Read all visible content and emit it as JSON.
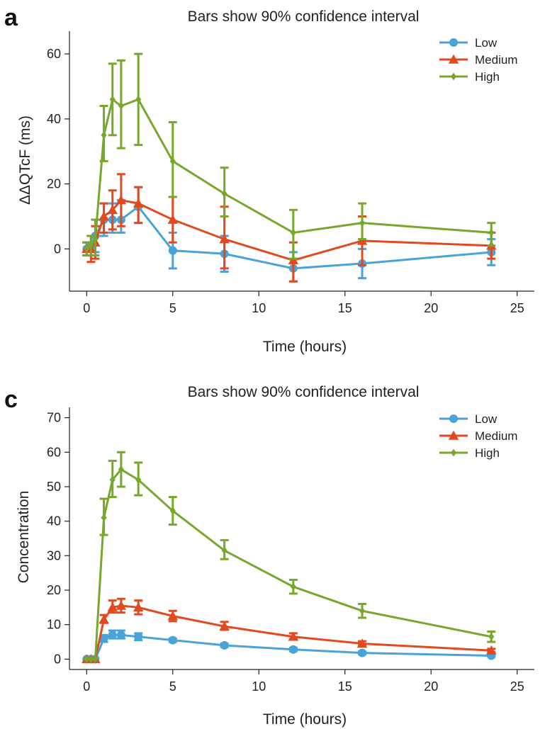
{
  "colors": {
    "Low": "#4aa3d8",
    "Medium": "#e2491e",
    "High": "#77a82d"
  },
  "chart_data": [
    {
      "panel": "a",
      "type": "line",
      "title": "Bars show 90% confidence interval",
      "xlabel": "Time (hours)",
      "ylabel": "ΔΔQTcF (ms)",
      "xlim": [
        -1,
        26
      ],
      "ylim": [
        -13,
        67
      ],
      "xticks": [
        0,
        5,
        10,
        15,
        20,
        25
      ],
      "yticks": [
        0,
        20,
        40,
        60
      ],
      "legend": "top-right",
      "series": [
        {
          "name": "Low",
          "marker": "circle",
          "x": [
            0,
            0.25,
            0.5,
            1,
            1.5,
            2,
            3,
            5,
            8,
            12,
            16,
            23.5
          ],
          "y": [
            0,
            1,
            4,
            9,
            9,
            9,
            13,
            -0.5,
            -1.5,
            -6,
            -4.5,
            -1
          ],
          "low": [
            -2,
            -2,
            -1,
            4,
            5,
            5,
            8,
            -6,
            -7,
            -10,
            -9,
            -5
          ],
          "high": [
            2,
            4,
            9,
            14,
            14,
            15,
            19,
            5,
            4,
            -1,
            0,
            3
          ]
        },
        {
          "name": "Medium",
          "marker": "triangle",
          "x": [
            0,
            0.25,
            0.5,
            1,
            1.5,
            2,
            3,
            5,
            8,
            12,
            16,
            23.5
          ],
          "y": [
            0,
            0,
            2,
            10,
            12,
            15,
            14,
            9,
            3,
            -3.5,
            2.5,
            1
          ],
          "low": [
            -2,
            -4,
            -3,
            5,
            6,
            7,
            8,
            2,
            -6,
            -10,
            -5,
            -3
          ],
          "high": [
            2,
            4,
            7,
            14,
            18,
            23,
            19,
            16,
            13,
            2,
            10,
            5
          ]
        },
        {
          "name": "High",
          "marker": "diamond",
          "x": [
            0,
            0.25,
            0.5,
            1,
            1.5,
            2,
            3,
            5,
            8,
            12,
            16,
            23.5
          ],
          "y": [
            0,
            1,
            3,
            35,
            46,
            44,
            46,
            27,
            17,
            5,
            8,
            5
          ],
          "low": [
            -2,
            -2,
            -2,
            27,
            35,
            31,
            32,
            16,
            10,
            -3,
            3,
            1
          ],
          "high": [
            2,
            4,
            9,
            44,
            57,
            58,
            60,
            39,
            25,
            12,
            14,
            8
          ]
        }
      ]
    },
    {
      "panel": "c",
      "type": "line",
      "title": "Bars show 90% confidence interval",
      "xlabel": "Time (hours)",
      "ylabel": "Concentration",
      "xlim": [
        -1,
        26
      ],
      "ylim": [
        -3,
        73
      ],
      "xticks": [
        0,
        5,
        10,
        15,
        20,
        25
      ],
      "yticks": [
        0,
        10,
        20,
        30,
        40,
        50,
        60,
        70
      ],
      "legend": "top-right",
      "series": [
        {
          "name": "Low",
          "marker": "circle",
          "x": [
            0,
            0.25,
            0.5,
            1,
            1.5,
            2,
            3,
            5,
            8,
            12,
            16,
            23.5
          ],
          "y": [
            0,
            0,
            0,
            6,
            7,
            7,
            6.5,
            5.5,
            4,
            2.8,
            1.8,
            1
          ],
          "low": [
            0,
            0,
            0,
            5,
            6,
            6,
            5.5,
            5,
            3.5,
            2.3,
            1.4,
            0.7
          ],
          "high": [
            0,
            0,
            0,
            7,
            8.3,
            8.3,
            7.5,
            6,
            4.5,
            3.3,
            2.2,
            1.3
          ]
        },
        {
          "name": "Medium",
          "marker": "triangle",
          "x": [
            0,
            0.25,
            0.5,
            1,
            1.5,
            2,
            3,
            5,
            8,
            12,
            16,
            23.5
          ],
          "y": [
            0,
            0,
            0,
            11.5,
            15,
            15.5,
            15,
            12.5,
            9.5,
            6.5,
            4.5,
            2.5
          ],
          "low": [
            0,
            0,
            0,
            10.5,
            13.5,
            13.5,
            13,
            11,
            8.5,
            5.8,
            4,
            2
          ],
          "high": [
            0,
            0,
            0,
            12.8,
            17,
            17.5,
            17,
            14,
            10.8,
            7.5,
            5.2,
            3
          ]
        },
        {
          "name": "High",
          "marker": "diamond",
          "x": [
            0,
            0.25,
            0.5,
            1,
            1.5,
            2,
            3,
            5,
            8,
            12,
            16,
            23.5
          ],
          "y": [
            0,
            0,
            0,
            41,
            52,
            55,
            52,
            43,
            31.5,
            21,
            14,
            6.5
          ],
          "low": [
            0,
            0,
            0,
            36,
            47,
            50,
            47.5,
            39,
            29,
            19,
            12,
            5
          ],
          "high": [
            0,
            0,
            0,
            46.5,
            57.5,
            60,
            57,
            47,
            34.5,
            23,
            16,
            8
          ]
        }
      ]
    }
  ]
}
